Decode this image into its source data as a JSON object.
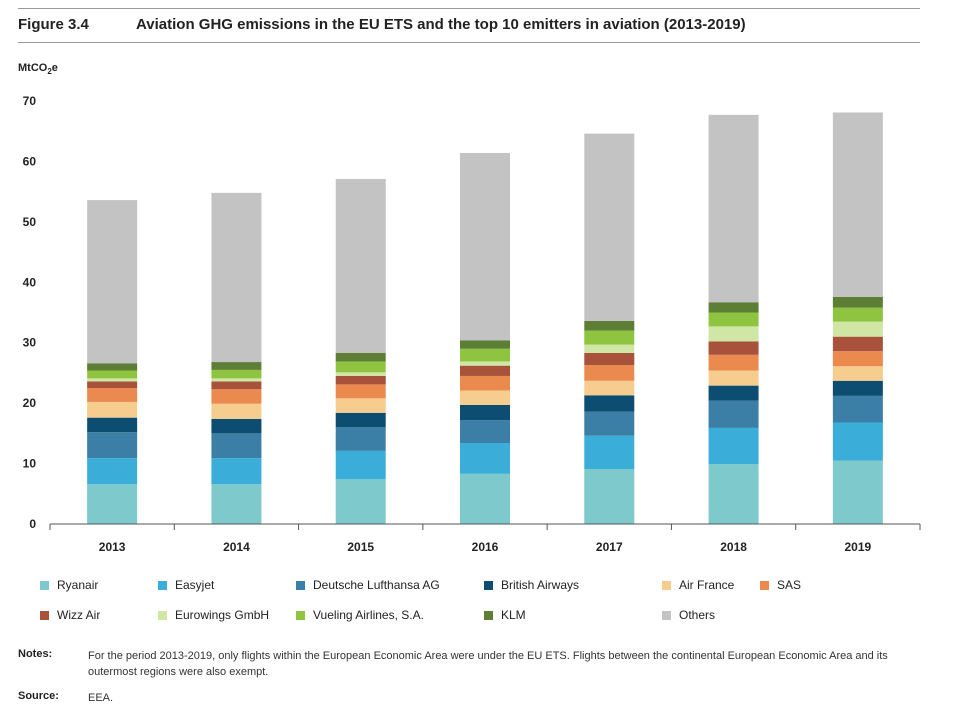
{
  "figure": {
    "number": "Figure 3.4",
    "title": "Aviation GHG emissions in the EU ETS and the top 10 emitters in aviation (2013-2019)"
  },
  "unit_main": "MtCO",
  "unit_sub": "2",
  "unit_tail": "e",
  "chart_data": {
    "type": "bar",
    "stacked": true,
    "categories": [
      "2013",
      "2014",
      "2015",
      "2016",
      "2017",
      "2018",
      "2019"
    ],
    "ylabel": "MtCO2e",
    "ylim": [
      0,
      70
    ],
    "yticks": [
      0,
      10,
      20,
      30,
      40,
      50,
      60,
      70
    ],
    "grid": false,
    "legend_position": "bottom",
    "series": [
      {
        "name": "Ryanair",
        "color": "#7ec9cc",
        "values": [
          6.6,
          6.6,
          7.4,
          8.3,
          9.1,
          9.9,
          10.5
        ]
      },
      {
        "name": "Easyjet",
        "color": "#3aaed8",
        "values": [
          4.3,
          4.3,
          4.7,
          5.1,
          5.5,
          6.0,
          6.3
        ]
      },
      {
        "name": "Deutsche Lufthansa AG",
        "color": "#3b7fa7",
        "values": [
          4.3,
          4.1,
          3.9,
          3.8,
          4.0,
          4.5,
          4.4
        ]
      },
      {
        "name": "British Airways",
        "color": "#0e4d72",
        "values": [
          2.4,
          2.4,
          2.4,
          2.5,
          2.7,
          2.5,
          2.5
        ]
      },
      {
        "name": "Air France",
        "color": "#f7cc8f",
        "values": [
          2.6,
          2.5,
          2.4,
          2.4,
          2.4,
          2.5,
          2.4
        ]
      },
      {
        "name": "SAS",
        "color": "#eb8a4f",
        "values": [
          2.3,
          2.4,
          2.3,
          2.4,
          2.6,
          2.6,
          2.5
        ]
      },
      {
        "name": "Wizz Air",
        "color": "#a8513b",
        "values": [
          1.1,
          1.3,
          1.4,
          1.7,
          2.0,
          2.2,
          2.4
        ]
      },
      {
        "name": "Eurowings GmbH",
        "color": "#cfe6a4",
        "values": [
          0.5,
          0.5,
          0.6,
          0.7,
          1.4,
          2.5,
          2.5
        ]
      },
      {
        "name": "Vueling Airlines, S.A.",
        "color": "#8ec440",
        "values": [
          1.3,
          1.4,
          1.8,
          2.1,
          2.3,
          2.3,
          2.3
        ]
      },
      {
        "name": "KLM",
        "color": "#5d7f35",
        "values": [
          1.2,
          1.3,
          1.4,
          1.4,
          1.6,
          1.7,
          1.8
        ]
      },
      {
        "name": "Others",
        "color": "#c3c3c3",
        "values": [
          27.0,
          28.0,
          28.8,
          31.0,
          31.0,
          31.0,
          30.5
        ]
      }
    ]
  },
  "notes": {
    "label": "Notes:",
    "text": "For the period 2013-2019, only flights within the European Economic Area were under the EU ETS. Flights between the continental European Economic Area and its outermost regions were also exempt."
  },
  "source": {
    "label": "Source:",
    "text": "EEA."
  }
}
